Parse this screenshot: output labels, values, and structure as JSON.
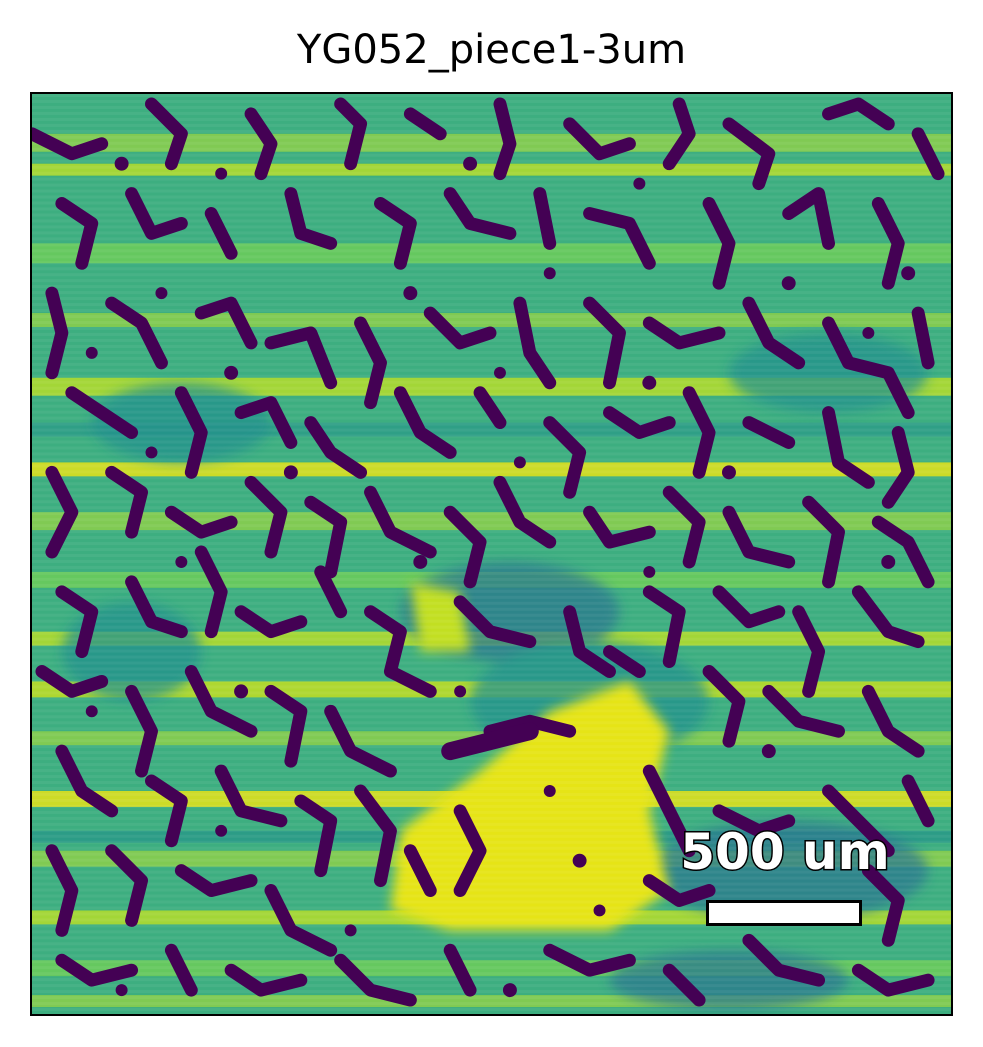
{
  "title": "YG052_piece1-3um",
  "scale_bar": {
    "label": "500 um"
  },
  "image": {
    "colormap": "viridis",
    "colors": {
      "background": "#2fa586",
      "bright": "#e6e419",
      "light": "#8cd04c",
      "mid": "#21918c",
      "dark": "#440154"
    }
  }
}
